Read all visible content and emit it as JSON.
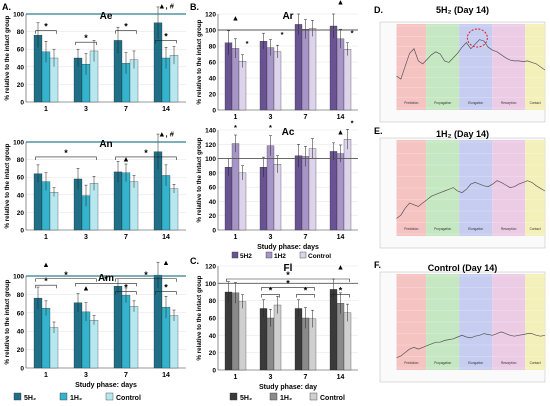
{
  "colors": {
    "teal_dark": "#1f6f86",
    "teal_mid": "#34b3cc",
    "teal_light": "#b7e8f0",
    "purple_dark": "#6a5393",
    "purple_mid": "#a895c8",
    "purple_light": "#ddd3ea",
    "grey_dark": "#3a3a3a",
    "grey_mid": "#8a8a8a",
    "grey_light": "#cfcfcf",
    "ref_teal": "#2e7f8c",
    "ref_grey": "#555555"
  },
  "panels": {
    "A": "A.",
    "B": "B.",
    "C": "C.",
    "D": "D.",
    "E": "E.",
    "F": "F."
  },
  "legends": {
    "A": [
      "5H₂",
      "1H₂",
      "Control"
    ],
    "B": [
      "5H2",
      "1H2",
      "Control"
    ],
    "C": [
      "5H₂",
      "1H₂",
      "Control"
    ]
  },
  "chart_data": [
    {
      "id": "Ae",
      "type": "bar",
      "panel": "A",
      "title": "Ae",
      "ylabel": "% relative to the intact group",
      "xlabel": "",
      "categories": [
        "1",
        "3",
        "7",
        "14"
      ],
      "ylim": [
        0,
        100
      ],
      "yticks": [
        0,
        20,
        40,
        60,
        80,
        100
      ],
      "reference_line": 100,
      "palette": "teal",
      "series": [
        {
          "name": "5H₂",
          "values": [
            76,
            50,
            70,
            90
          ],
          "errors": [
            14,
            10,
            15,
            18
          ]
        },
        {
          "name": "1H₂",
          "values": [
            57,
            43,
            44,
            50
          ],
          "errors": [
            12,
            12,
            12,
            12
          ]
        },
        {
          "name": "Control",
          "values": [
            50,
            58,
            48,
            53
          ],
          "errors": [
            10,
            12,
            10,
            10
          ]
        }
      ],
      "annotations": [
        {
          "text": "*",
          "from": 0,
          "to": 0,
          "level": 81
        },
        {
          "text": "*",
          "from": 1,
          "to": 1,
          "level": 68
        },
        {
          "text": "*",
          "from": 2,
          "to": 2,
          "level": 81
        },
        {
          "text": "*",
          "from": 3,
          "to": 3,
          "level": 70
        },
        {
          "text": "▲, #",
          "at": 3,
          "level": 106
        }
      ]
    },
    {
      "id": "An",
      "type": "bar",
      "panel": "A",
      "title": "An",
      "ylabel": "% relative to the intact group",
      "xlabel": "",
      "categories": [
        "1",
        "3",
        "7",
        "14"
      ],
      "ylim": [
        0,
        100
      ],
      "yticks": [
        0,
        20,
        40,
        60,
        80,
        100
      ],
      "reference_line": 100,
      "palette": "teal",
      "series": [
        {
          "name": "5H₂",
          "values": [
            64,
            58,
            66,
            89
          ],
          "errors": [
            10,
            12,
            12,
            20
          ]
        },
        {
          "name": "1H₂",
          "values": [
            55,
            39,
            65,
            62
          ],
          "errors": [
            10,
            12,
            10,
            12
          ]
        },
        {
          "name": "Control",
          "values": [
            43,
            53,
            55,
            47
          ],
          "errors": [
            5,
            8,
            7,
            5
          ]
        }
      ],
      "annotations": [
        {
          "text": "*",
          "from": 0,
          "to": 1,
          "level": 83
        },
        {
          "text": "*",
          "from": 2,
          "to": 3,
          "level": 83
        },
        {
          "text": "▲",
          "at": 2,
          "level": 78
        },
        {
          "text": "▲, #",
          "at": 3,
          "level": 106
        }
      ]
    },
    {
      "id": "Am",
      "type": "bar",
      "panel": "A",
      "title": "Am",
      "ylabel": "% relative to the intact group",
      "xlabel": "Study phase: days",
      "categories": [
        "1",
        "3",
        "7",
        "14"
      ],
      "ylim": [
        0,
        100
      ],
      "yticks": [
        0,
        20,
        40,
        60,
        80,
        100
      ],
      "reference_line": 100,
      "palette": "teal",
      "series": [
        {
          "name": "5H₂",
          "values": [
            76,
            71,
            89,
            101
          ],
          "errors": [
            12,
            10,
            8,
            14
          ]
        },
        {
          "name": "1H₂",
          "values": [
            65,
            61,
            79,
            66
          ],
          "errors": [
            8,
            10,
            8,
            12
          ]
        },
        {
          "name": "Control",
          "values": [
            44,
            52,
            67,
            57
          ],
          "errors": [
            6,
            5,
            6,
            6
          ]
        }
      ],
      "annotations": [
        {
          "text": "▲",
          "at": 0,
          "level": 110
        },
        {
          "text": "*",
          "from": 0,
          "to": 0,
          "level": 90
        },
        {
          "text": "*",
          "from": 0,
          "to": 1,
          "level": 97
        },
        {
          "text": "▲",
          "at": 1,
          "level": 84
        },
        {
          "text": "*",
          "from": 1,
          "to": 2,
          "level": 92
        },
        {
          "text": "*",
          "from": 2,
          "to": 2,
          "level": 83
        },
        {
          "text": "*",
          "from": 2,
          "to": 3,
          "level": 97
        },
        {
          "text": "*",
          "from": 3,
          "to": 3,
          "level": 83
        },
        {
          "text": "▲",
          "at": 3,
          "level": 112
        }
      ]
    },
    {
      "id": "Ar",
      "type": "bar",
      "panel": "B",
      "title": "Ar",
      "ylabel": "% relative to the intact group",
      "xlabel": "",
      "categories": [
        "1",
        "3",
        "7",
        "14"
      ],
      "ylim": [
        0,
        120
      ],
      "yticks": [
        0,
        20,
        40,
        60,
        80,
        100,
        120
      ],
      "reference_line": 100,
      "palette": "purple",
      "series": [
        {
          "name": "5H2",
          "values": [
            84,
            86,
            107,
            105
          ],
          "errors": [
            15,
            10,
            13,
            15
          ]
        },
        {
          "name": "1H2",
          "values": [
            77,
            78,
            101,
            89
          ],
          "errors": [
            12,
            10,
            12,
            12
          ]
        },
        {
          "name": "Control",
          "values": [
            61,
            73,
            102,
            76
          ],
          "errors": [
            8,
            8,
            10,
            8
          ]
        }
      ],
      "annotations": [
        {
          "text": "▲",
          "at": 0,
          "level": 112
        },
        {
          "text": "*",
          "at": 0.33,
          "level": 80
        },
        {
          "text": "*",
          "at": 1.33,
          "level": 91
        },
        {
          "text": "▲",
          "at": 3,
          "level": 132
        },
        {
          "text": "*",
          "at": 3.33,
          "level": 93
        }
      ]
    },
    {
      "id": "Ac",
      "type": "bar",
      "panel": "B",
      "title": "Ac",
      "ylabel": "% relative to the intact group",
      "xlabel": "Study phase: days",
      "categories": [
        "1",
        "3",
        "7",
        "14"
      ],
      "ylim": [
        0,
        140
      ],
      "yticks": [
        0,
        20,
        40,
        60,
        80,
        100,
        120,
        140
      ],
      "reference_line": 100,
      "palette": "purple",
      "series": [
        {
          "name": "5H2",
          "values": [
            88,
            88,
            104,
            110
          ],
          "errors": [
            12,
            14,
            16,
            12
          ]
        },
        {
          "name": "1H2",
          "values": [
            121,
            118,
            103,
            107
          ],
          "errors": [
            12,
            14,
            14,
            12
          ]
        },
        {
          "name": "Control",
          "values": [
            80,
            92,
            114,
            127
          ],
          "errors": [
            10,
            12,
            14,
            14
          ]
        }
      ],
      "annotations": [
        {
          "text": "*",
          "at": 0,
          "level": 140
        },
        {
          "text": "*",
          "at": 1,
          "level": 140
        },
        {
          "text": "▲",
          "at": 3,
          "level": 134
        },
        {
          "text": "*",
          "at": 3.33,
          "level": 146
        }
      ]
    },
    {
      "id": "Fl",
      "type": "bar",
      "panel": "C",
      "title": "Fl",
      "ylabel": "% relative to the intact group",
      "xlabel": "Study phase: day",
      "categories": [
        "1",
        "3",
        "7",
        "14"
      ],
      "ylim": [
        0,
        120
      ],
      "yticks": [
        0,
        20,
        40,
        60,
        80,
        100,
        120
      ],
      "reference_line": 100,
      "palette": "grey",
      "series": [
        {
          "name": "5H₂",
          "values": [
            90,
            71,
            71,
            93
          ],
          "errors": [
            12,
            10,
            10,
            12
          ]
        },
        {
          "name": "1H₂",
          "values": [
            89,
            60,
            60,
            77
          ],
          "errors": [
            12,
            10,
            12,
            12
          ]
        },
        {
          "name": "Control",
          "values": [
            79,
            75,
            59,
            66
          ],
          "errors": [
            8,
            10,
            10,
            10
          ]
        }
      ],
      "annotations": [
        {
          "text": "*",
          "from": 0,
          "to": 3,
          "level": 105
        },
        {
          "text": "*",
          "from": 1,
          "to": 1,
          "level": 87
        },
        {
          "text": "*",
          "from": 1,
          "to": 2,
          "level": 95
        },
        {
          "text": "*",
          "from": 2,
          "to": 2,
          "level": 87
        },
        {
          "text": "▲",
          "at": 3,
          "level": 116
        },
        {
          "text": "*",
          "from": 3,
          "to": 3,
          "level": 87
        }
      ]
    },
    {
      "id": "D",
      "type": "line",
      "panel": "D",
      "title": "5H₂ (Day 14)",
      "xlabel": "",
      "ylabel": "",
      "zones": [
        "Prediction",
        "Propagation",
        "Elongation",
        "Resorption",
        "Contact"
      ],
      "values": [
        0.42,
        0.38,
        0.55,
        0.72,
        0.78,
        0.62,
        0.58,
        0.64,
        0.7,
        0.74,
        0.71,
        0.62,
        0.6,
        0.66,
        0.72,
        0.8,
        0.86,
        0.78,
        0.84,
        0.9,
        0.88,
        0.8,
        0.76,
        0.74,
        0.7,
        0.66,
        0.63,
        0.62,
        0.62,
        0.61,
        0.62,
        0.6,
        0.58,
        0.54,
        0.5
      ]
    },
    {
      "id": "E",
      "type": "line",
      "panel": "E",
      "title": "1H₂ (Day 14)",
      "xlabel": "",
      "ylabel": "",
      "zones": [
        "Prediction",
        "Propagation",
        "Elongation",
        "Resorption",
        "Contact"
      ],
      "values": [
        0.18,
        0.22,
        0.3,
        0.36,
        0.34,
        0.32,
        0.36,
        0.4,
        0.44,
        0.46,
        0.48,
        0.5,
        0.52,
        0.54,
        0.5,
        0.48,
        0.52,
        0.58,
        0.6,
        0.58,
        0.56,
        0.55,
        0.58,
        0.62,
        0.6,
        0.57,
        0.54,
        0.55,
        0.58,
        0.6,
        0.62,
        0.6,
        0.56,
        0.53,
        0.5
      ]
    },
    {
      "id": "F",
      "type": "line",
      "panel": "F",
      "title": "Control  (Day 14)",
      "xlabel": "",
      "ylabel": "",
      "zones": [
        "Prediction",
        "Propagation",
        "Elongation",
        "Resorption",
        "Contact"
      ],
      "values": [
        0.12,
        0.14,
        0.18,
        0.22,
        0.24,
        0.22,
        0.24,
        0.26,
        0.28,
        0.3,
        0.3,
        0.32,
        0.33,
        0.34,
        0.36,
        0.38,
        0.36,
        0.35,
        0.37,
        0.38,
        0.4,
        0.39,
        0.38,
        0.4,
        0.42,
        0.4,
        0.38,
        0.37,
        0.38,
        0.39,
        0.4,
        0.4,
        0.38,
        0.37,
        0.38
      ]
    }
  ]
}
